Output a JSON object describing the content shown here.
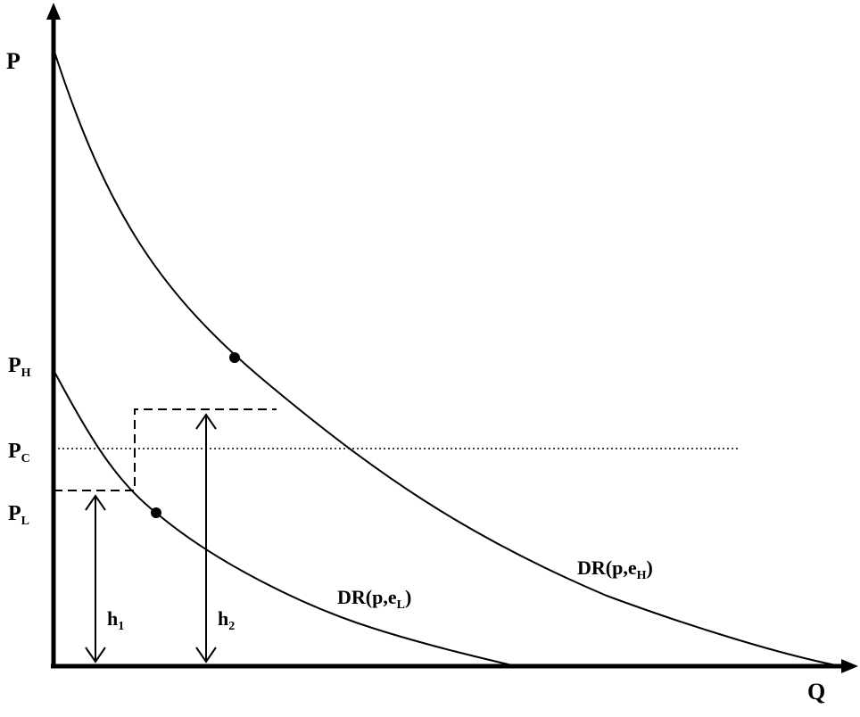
{
  "labels": {
    "y_axis": "P",
    "x_axis": "Q",
    "p_high": {
      "main": "P",
      "sub": "H"
    },
    "p_compare": {
      "main": "P",
      "sub": "C"
    },
    "p_low": {
      "main": "P",
      "sub": "L"
    },
    "h1": {
      "main": "h",
      "sub": "1"
    },
    "h2": {
      "main": "h",
      "sub": "2"
    },
    "curve_high": {
      "prefix": "DR(p,e",
      "sub": "H",
      "suffix": ")"
    },
    "curve_low": {
      "prefix": "DR(p,e",
      "sub": "L",
      "suffix": ")"
    }
  },
  "colors": {
    "ink": "#000000",
    "background": "#ffffff"
  }
}
